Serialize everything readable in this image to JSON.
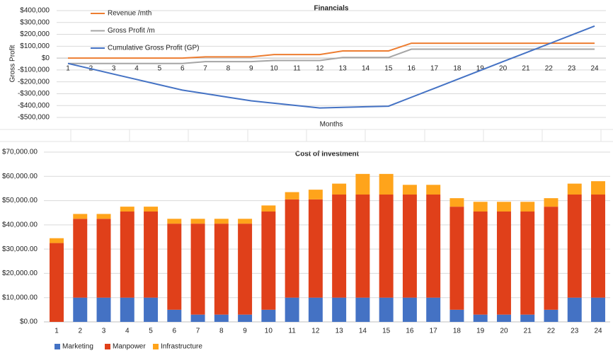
{
  "chart_data": [
    {
      "type": "line",
      "title": "Financials",
      "x_label": "Months",
      "y_label": "Gross Profit",
      "categories": [
        1,
        2,
        3,
        4,
        5,
        6,
        7,
        8,
        9,
        10,
        11,
        12,
        13,
        14,
        15,
        16,
        17,
        18,
        19,
        20,
        21,
        22,
        23,
        24
      ],
      "series": [
        {
          "name": "Revenue /mth",
          "color": "#ed7d31",
          "values": [
            0,
            0,
            0,
            0,
            0,
            0,
            10000,
            10000,
            10000,
            30000,
            30000,
            30000,
            60000,
            60000,
            60000,
            125000,
            125000,
            125000,
            125000,
            125000,
            125000,
            125000,
            125000,
            125000
          ]
        },
        {
          "name": "Gross Profit /m",
          "color": "#a5a5a5",
          "values": [
            -45000,
            -45000,
            -45000,
            -45000,
            -45000,
            -45000,
            -30000,
            -30000,
            -30000,
            -20000,
            -20000,
            -20000,
            5000,
            5000,
            5000,
            75000,
            75000,
            75000,
            75000,
            75000,
            75000,
            75000,
            75000,
            75000
          ]
        },
        {
          "name": "Cumulative Gross Profit (GP)",
          "color": "#4472c4",
          "values": [
            -45000,
            -90000,
            -135000,
            -180000,
            -225000,
            -270000,
            -300000,
            -330000,
            -360000,
            -380000,
            -400000,
            -420000,
            -415000,
            -410000,
            -405000,
            -330000,
            -255000,
            -180000,
            -105000,
            -30000,
            45000,
            120000,
            195000,
            270000
          ]
        }
      ],
      "ylim": [
        -500000,
        400000
      ],
      "yticks": [
        {
          "value": -500000,
          "label": "-$500,000"
        },
        {
          "value": -400000,
          "label": "-$400,000"
        },
        {
          "value": -300000,
          "label": "-$300,000"
        },
        {
          "value": -200000,
          "label": "-$200,000"
        },
        {
          "value": -100000,
          "label": "-$100,000"
        },
        {
          "value": 0,
          "label": "$0"
        },
        {
          "value": 100000,
          "label": "$100,000"
        },
        {
          "value": 200000,
          "label": "$200,000"
        },
        {
          "value": 300000,
          "label": "$300,000"
        },
        {
          "value": 400000,
          "label": "$400,000"
        }
      ],
      "grid": true,
      "legend": "top-left"
    },
    {
      "type": "bar",
      "stacked": true,
      "title": "Cost of Investment",
      "categories": [
        1,
        2,
        3,
        4,
        5,
        6,
        7,
        8,
        9,
        10,
        11,
        12,
        13,
        14,
        15,
        16,
        17,
        18,
        19,
        20,
        21,
        22,
        23,
        24
      ],
      "series": [
        {
          "name": "Marketing",
          "color": "#4472c4",
          "values": [
            0,
            10000,
            10000,
            10000,
            10000,
            5000,
            3000,
            3000,
            3000,
            5000,
            10000,
            10000,
            10000,
            10000,
            10000,
            10000,
            10000,
            5000,
            3000,
            3000,
            3000,
            5000,
            10000,
            10000
          ]
        },
        {
          "name": "Manpower",
          "color": "#e0401a",
          "values": [
            32500,
            32500,
            32500,
            35500,
            35500,
            35500,
            37500,
            37500,
            37500,
            40500,
            40500,
            40500,
            42500,
            42500,
            42500,
            42500,
            42500,
            42500,
            42500,
            42500,
            42500,
            42500,
            42500,
            42500
          ]
        },
        {
          "name": "Infrastructure",
          "color": "#ffa41b",
          "values": [
            2000,
            2000,
            2000,
            2000,
            2000,
            2000,
            2000,
            2000,
            2000,
            2500,
            3000,
            4000,
            4500,
            8500,
            8500,
            4000,
            4000,
            3500,
            4000,
            4000,
            4000,
            3500,
            4500,
            5500
          ]
        }
      ],
      "ylim": [
        0,
        70000
      ],
      "yticks": [
        {
          "value": 0,
          "label": "$0.00"
        },
        {
          "value": 10000,
          "label": "$10,000.00"
        },
        {
          "value": 20000,
          "label": "$20,000.00"
        },
        {
          "value": 30000,
          "label": "$30,000.00"
        },
        {
          "value": 40000,
          "label": "$40,000.00"
        },
        {
          "value": 50000,
          "label": "$50,000.00"
        },
        {
          "value": 60000,
          "label": "$60,000.00"
        },
        {
          "value": 70000,
          "label": "$70,000.00"
        }
      ],
      "grid": true,
      "legend": "bottom"
    }
  ]
}
